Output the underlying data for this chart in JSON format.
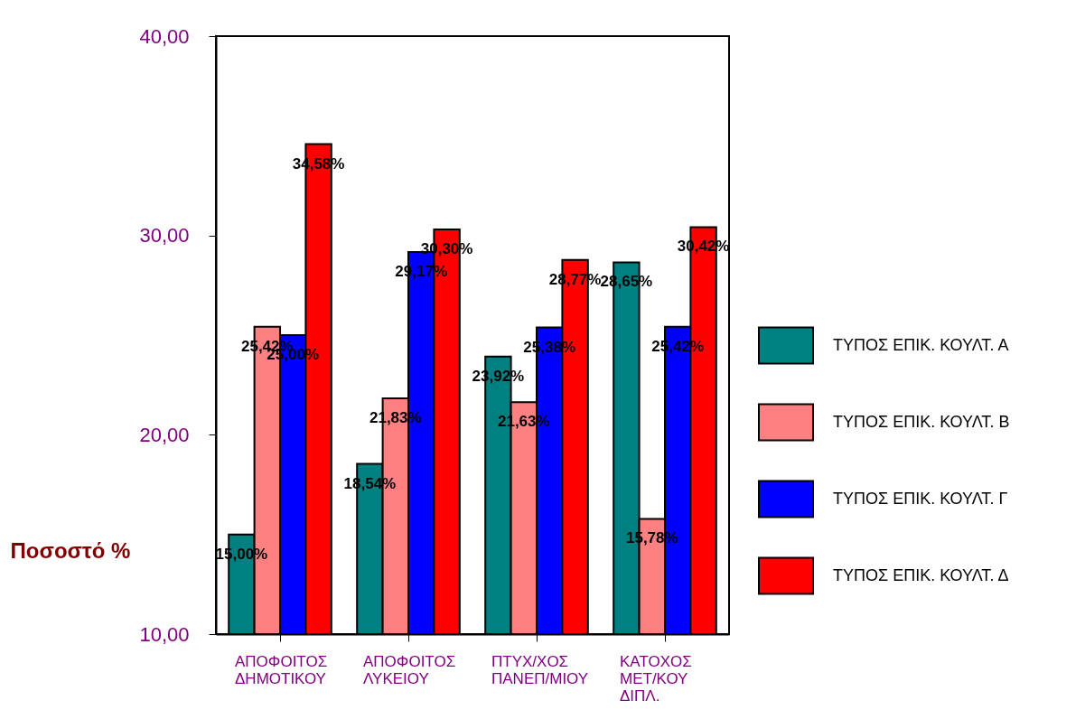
{
  "chart_data": {
    "type": "bar",
    "ylabel": "Ποσοστό %",
    "categories": [
      "ΑΠΟΦΟΙΤΟΣ\nΔΗΜΟΤΙΚΟΥ",
      "ΑΠΟΦΟΙΤΟΣ\nΛΥΚΕΙΟΥ",
      "ΠΤΥΧ/ΧΟΣ\nΠΑΝΕΠ/ΜΙΟΥ",
      "ΚΑΤΟΧΟΣ\nΜΕΤ/ΚΟΥ\nΔΙΠΛ."
    ],
    "series": [
      {
        "name": "ΤΥΠΟΣ ΕΠΙΚ.  ΚΟΥΛΤ. Α",
        "color": "#008080",
        "values": [
          15.0,
          18.54,
          23.92,
          28.65
        ],
        "value_labels": [
          "15,00%",
          "18,54%",
          "23,92%",
          "28,65%"
        ]
      },
      {
        "name": "ΤΥΠΟΣ ΕΠΙΚ. ΚΟΥΛΤ. Β",
        "color": "#ff8080",
        "values": [
          25.42,
          21.83,
          21.63,
          15.78
        ],
        "value_labels": [
          "25,42%",
          "21,83%",
          "21,63%",
          "15,78%"
        ]
      },
      {
        "name": "ΤΥΠΟΣ ΕΠΙΚ. ΚΟΥΛΤ. Γ",
        "color": "#0000ff",
        "values": [
          25.0,
          29.17,
          25.38,
          25.42
        ],
        "value_labels": [
          "25,00%",
          "29,17%",
          "25,38%",
          "25,42%"
        ]
      },
      {
        "name": "ΤΥΠΟΣ ΕΠΙΚ. ΚΟΥΛΤ. Δ",
        "color": "#ff0000",
        "values": [
          34.58,
          30.3,
          28.77,
          30.42
        ],
        "value_labels": [
          "34,58%",
          "30,30%",
          "28,77%",
          "30,42%"
        ]
      }
    ],
    "ylim": [
      10,
      40
    ],
    "yticks": [
      {
        "value": 10,
        "label": "10,00"
      },
      {
        "value": 20,
        "label": "20,00"
      },
      {
        "value": 30,
        "label": "30,00"
      },
      {
        "value": 40,
        "label": "40,00"
      }
    ],
    "grid": false,
    "legend": "right"
  }
}
